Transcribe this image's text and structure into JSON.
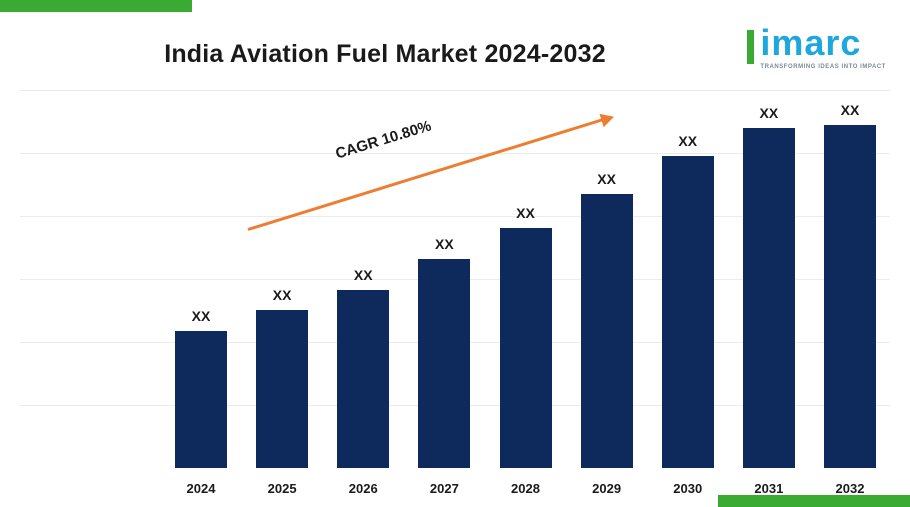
{
  "chart_data": {
    "type": "bar",
    "title": "India Aviation Fuel Market 2024-2032",
    "categories": [
      "2024",
      "2025",
      "2026",
      "2027",
      "2028",
      "2029",
      "2030",
      "2031",
      "2032"
    ],
    "values": [
      40,
      46,
      52,
      61,
      70,
      80,
      91,
      99,
      100
    ],
    "values_unit": "relative height (actual values masked as XX on chart)",
    "value_labels": [
      "XX",
      "XX",
      "XX",
      "XX",
      "XX",
      "XX",
      "XX",
      "XX",
      "XX"
    ],
    "annotation": "CAGR 10.80%",
    "xlabel": "",
    "ylabel": "",
    "legend": "none",
    "grid": "horizontal",
    "bar_color": "#0e2a5c",
    "arrow_color": "#ed7d31"
  },
  "logo": {
    "text": "imarc",
    "tagline": "TRANSFORMING IDEAS INTO IMPACT",
    "brand_blue": "#1da7dd",
    "brand_green": "#3aaa35"
  },
  "accents": {
    "corner_green": "#3aaa35"
  }
}
